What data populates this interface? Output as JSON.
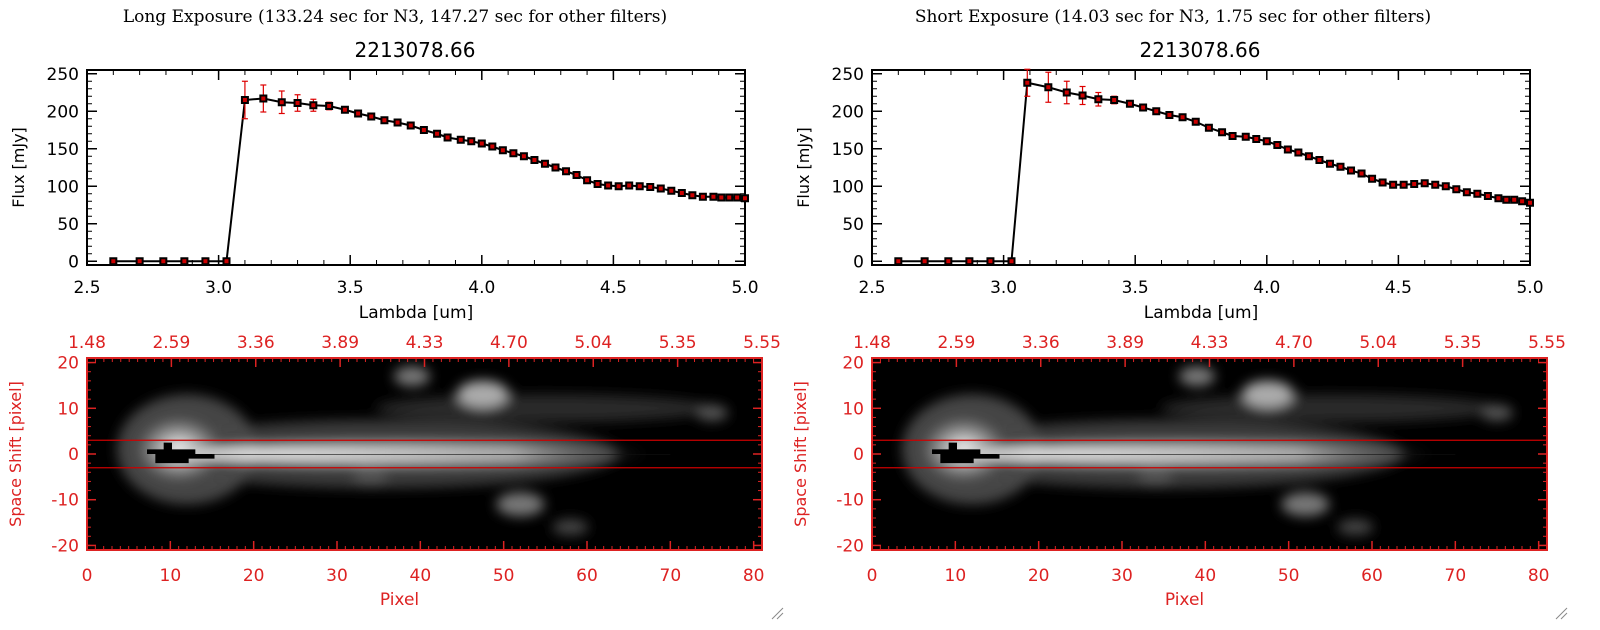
{
  "panels": [
    {
      "heading": "Long Exposure (133.24 sec for N3, 147.27 sec for other filters)",
      "spectrum": {
        "title": "2213078.66",
        "xlabel": "Lambda [um]",
        "ylabel": "Flux [mJy]",
        "x_ticks": [
          "2.5",
          "3.0",
          "3.5",
          "4.0",
          "4.5",
          "5.0"
        ],
        "y_ticks": [
          "0",
          "50",
          "100",
          "150",
          "200",
          "250"
        ]
      },
      "image": {
        "top_ticks": [
          "1.48",
          "2.59",
          "3.36",
          "3.89",
          "4.33",
          "4.70",
          "5.04",
          "5.35",
          "5.55"
        ],
        "x_ticks": [
          "0",
          "10",
          "20",
          "30",
          "40",
          "50",
          "60",
          "70",
          "80"
        ],
        "y_ticks": [
          "20",
          "10",
          "0",
          "-10",
          "-20"
        ],
        "xlabel": "Pixel",
        "ylabel": "Space Shift [pixel]"
      }
    },
    {
      "heading": "Short Exposure (14.03 sec for N3, 1.75 sec for other filters)",
      "spectrum": {
        "title": "2213078.66",
        "xlabel": "Lambda [um]",
        "ylabel": "Flux [mJy]",
        "x_ticks": [
          "2.5",
          "3.0",
          "3.5",
          "4.0",
          "4.5",
          "5.0"
        ],
        "y_ticks": [
          "0",
          "50",
          "100",
          "150",
          "200",
          "250"
        ]
      },
      "image": {
        "top_ticks": [
          "1.48",
          "2.59",
          "3.36",
          "3.89",
          "4.33",
          "4.70",
          "5.04",
          "5.35",
          "5.55"
        ],
        "x_ticks": [
          "0",
          "10",
          "20",
          "30",
          "40",
          "50",
          "60",
          "70",
          "80"
        ],
        "y_ticks": [
          "20",
          "10",
          "0",
          "-10",
          "-20"
        ],
        "xlabel": "Pixel",
        "ylabel": "Space Shift [pixel]"
      }
    }
  ],
  "chart_data": [
    {
      "type": "line",
      "title": "2213078.66",
      "xlabel": "Lambda [um]",
      "ylabel": "Flux [mJy]",
      "xlim": [
        2.5,
        5.0
      ],
      "ylim": [
        -5,
        255
      ],
      "x": [
        2.6,
        2.7,
        2.79,
        2.87,
        2.95,
        3.03,
        3.1,
        3.17,
        3.24,
        3.3,
        3.36,
        3.42,
        3.48,
        3.53,
        3.58,
        3.63,
        3.68,
        3.73,
        3.78,
        3.83,
        3.87,
        3.92,
        3.96,
        4.0,
        4.04,
        4.08,
        4.12,
        4.16,
        4.2,
        4.24,
        4.28,
        4.32,
        4.36,
        4.4,
        4.44,
        4.48,
        4.52,
        4.56,
        4.6,
        4.64,
        4.68,
        4.72,
        4.76,
        4.8,
        4.84,
        4.88,
        4.91,
        4.94,
        4.97,
        5.0
      ],
      "y": [
        0,
        0,
        0,
        0,
        0,
        0,
        215,
        217,
        212,
        211,
        208,
        207,
        202,
        197,
        193,
        188,
        185,
        181,
        175,
        170,
        165,
        162,
        160,
        157,
        153,
        148,
        144,
        140,
        135,
        130,
        125,
        120,
        115,
        108,
        103,
        101,
        100,
        101,
        100,
        99,
        97,
        94,
        91,
        88,
        86,
        86,
        85,
        85,
        85,
        84
      ],
      "errors": [
        0,
        0,
        0,
        0,
        0,
        0,
        25,
        18,
        15,
        11,
        8,
        5,
        3,
        3,
        2,
        2,
        2,
        2,
        2,
        2,
        2,
        2,
        2,
        2,
        2,
        2,
        2,
        2,
        2,
        2,
        2,
        2,
        2,
        2,
        2,
        2,
        2,
        2,
        2,
        2,
        2,
        2,
        2,
        2,
        2,
        2,
        2,
        2,
        2,
        2
      ],
      "marker_color": "#cc0000",
      "errorbar_color": "#dd0000"
    },
    {
      "type": "heatmap",
      "xlabel": "Pixel",
      "ylabel": "Space Shift [pixel]",
      "xlim": [
        0,
        81
      ],
      "ylim": [
        -21,
        21
      ],
      "top_axis_ticks": [
        "1.48",
        "2.59",
        "3.36",
        "3.89",
        "4.33",
        "4.70",
        "5.04",
        "5.35",
        "5.55"
      ],
      "extraction_band": [
        -3,
        3
      ],
      "band_color": "#cc0000",
      "axis_color": "#dd2222"
    },
    {
      "type": "line",
      "title": "2213078.66",
      "xlabel": "Lambda [um]",
      "ylabel": "Flux [mJy]",
      "xlim": [
        2.5,
        5.0
      ],
      "ylim": [
        -5,
        255
      ],
      "x": [
        2.6,
        2.7,
        2.79,
        2.87,
        2.95,
        3.03,
        3.09,
        3.17,
        3.24,
        3.3,
        3.36,
        3.42,
        3.48,
        3.53,
        3.58,
        3.63,
        3.68,
        3.73,
        3.78,
        3.83,
        3.87,
        3.92,
        3.96,
        4.0,
        4.04,
        4.08,
        4.12,
        4.16,
        4.2,
        4.24,
        4.28,
        4.32,
        4.36,
        4.4,
        4.44,
        4.48,
        4.52,
        4.56,
        4.6,
        4.64,
        4.68,
        4.72,
        4.76,
        4.8,
        4.84,
        4.88,
        4.91,
        4.94,
        4.97,
        5.0
      ],
      "y": [
        0,
        0,
        0,
        0,
        0,
        0,
        238,
        232,
        225,
        221,
        216,
        215,
        210,
        205,
        200,
        195,
        192,
        186,
        178,
        172,
        167,
        166,
        163,
        160,
        155,
        149,
        145,
        140,
        135,
        130,
        126,
        121,
        117,
        110,
        105,
        102,
        102,
        103,
        104,
        102,
        100,
        96,
        92,
        90,
        87,
        84,
        82,
        82,
        80,
        78
      ],
      "errors": [
        0,
        0,
        0,
        0,
        0,
        0,
        18,
        20,
        15,
        12,
        9,
        5,
        3,
        3,
        2,
        2,
        2,
        2,
        2,
        2,
        2,
        2,
        2,
        2,
        2,
        2,
        2,
        2,
        2,
        2,
        2,
        2,
        2,
        2,
        2,
        2,
        2,
        2,
        2,
        2,
        2,
        2,
        2,
        2,
        2,
        2,
        2,
        2,
        2,
        2
      ],
      "marker_color": "#cc0000",
      "errorbar_color": "#dd0000"
    },
    {
      "type": "heatmap",
      "xlabel": "Pixel",
      "ylabel": "Space Shift [pixel]",
      "xlim": [
        0,
        81
      ],
      "ylim": [
        -21,
        21
      ],
      "top_axis_ticks": [
        "1.48",
        "2.59",
        "3.36",
        "3.89",
        "4.33",
        "4.70",
        "5.04",
        "5.35",
        "5.55"
      ],
      "extraction_band": [
        -3,
        3
      ],
      "band_color": "#cc0000",
      "axis_color": "#dd2222"
    }
  ]
}
